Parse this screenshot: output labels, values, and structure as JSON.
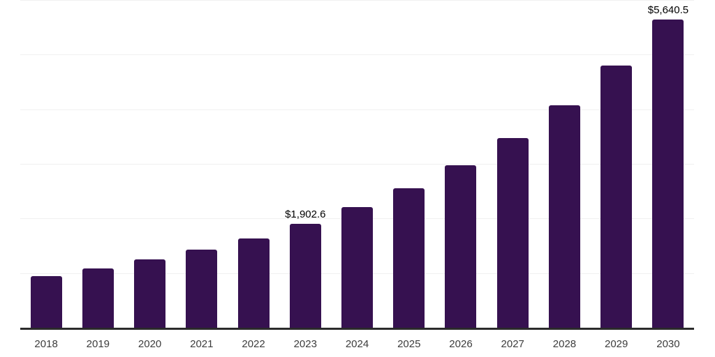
{
  "colors": {
    "background": "#ffffff",
    "bar": "#361150",
    "gridline": "#f0f0f0",
    "axis": "#2b2b2b",
    "tick_label": "#3c3c3c",
    "value_label": "#000000"
  },
  "chart_data": {
    "type": "bar",
    "title": "",
    "xlabel": "",
    "ylabel": "",
    "categories": [
      "2018",
      "2019",
      "2020",
      "2021",
      "2022",
      "2023",
      "2024",
      "2025",
      "2026",
      "2027",
      "2028",
      "2029",
      "2030"
    ],
    "values": [
      950,
      1085,
      1255,
      1425,
      1640,
      1902.6,
      2205,
      2555,
      2975,
      3470,
      4075,
      4795,
      5640.5
    ],
    "ylim": [
      0,
      6000
    ],
    "gridline_values": [
      1000,
      2000,
      3000,
      4000,
      5000,
      6000
    ],
    "grid": true,
    "legend_position": "none",
    "data_labels": [
      {
        "category": "2023",
        "label": "$1,902.6"
      },
      {
        "category": "2030",
        "label": "$5,640.5"
      }
    ]
  }
}
